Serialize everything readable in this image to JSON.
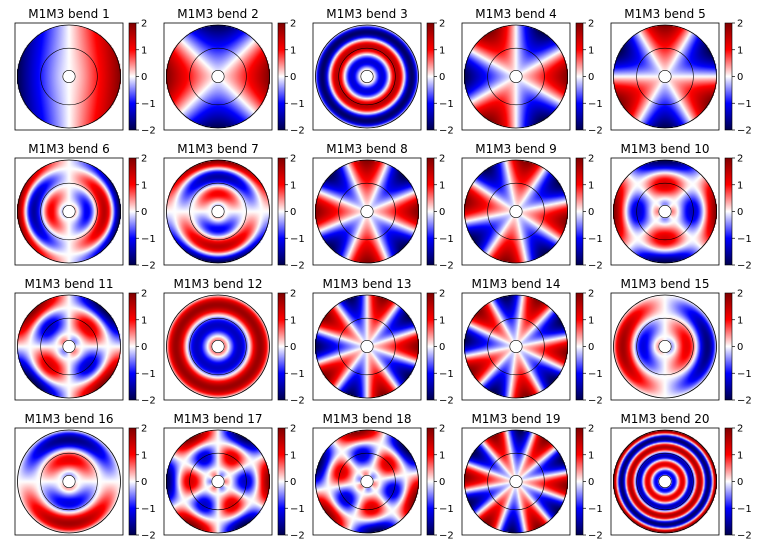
{
  "figure": {
    "rows": 4,
    "cols": 5
  },
  "chart_data": {
    "type": "heatmap",
    "colormap": "seismic",
    "colormap_colors": [
      "#00004c",
      "#0000ff",
      "#ffffff",
      "#ff0000",
      "#7f0000"
    ],
    "colorbar_range": [
      -2,
      2
    ],
    "colorbar_ticks": [
      "2",
      "1",
      "0",
      "−1",
      "−2"
    ],
    "panels": [
      {
        "title": "M1M3 bend 1",
        "kind": "ang",
        "n": 1,
        "r": 0,
        "phase": 0
      },
      {
        "title": "M1M3 bend 2",
        "kind": "ang",
        "n": 2,
        "r": 0,
        "phase": 0
      },
      {
        "title": "M1M3 bend 3",
        "kind": "rad",
        "n": 0,
        "r": 3.5,
        "phase": 0
      },
      {
        "title": "M1M3 bend 4",
        "kind": "ang",
        "n": 3,
        "r": 0,
        "phase": 0
      },
      {
        "title": "M1M3 bend 5",
        "kind": "ang",
        "n": 3,
        "r": 0,
        "phase": 1.57
      },
      {
        "title": "M1M3 bend 6",
        "kind": "mix",
        "n": 1,
        "r": 3,
        "phase": 0
      },
      {
        "title": "M1M3 bend 7",
        "kind": "mix",
        "n": 1,
        "r": 3,
        "phase": 1.57
      },
      {
        "title": "M1M3 bend 8",
        "kind": "ang",
        "n": 4,
        "r": 0,
        "phase": 0
      },
      {
        "title": "M1M3 bend 9",
        "kind": "ang",
        "n": 4,
        "r": 0,
        "phase": 0.78
      },
      {
        "title": "M1M3 bend 10",
        "kind": "mix",
        "n": 2,
        "r": 2,
        "phase": 0
      },
      {
        "title": "M1M3 bend 11",
        "kind": "mix",
        "n": 2,
        "r": 2,
        "phase": 1.57
      },
      {
        "title": "M1M3 bend 12",
        "kind": "rad",
        "n": 0,
        "r": 2.5,
        "phase": 0
      },
      {
        "title": "M1M3 bend 13",
        "kind": "ang",
        "n": 5,
        "r": 0,
        "phase": 0
      },
      {
        "title": "M1M3 bend 14",
        "kind": "ang",
        "n": 5,
        "r": 0,
        "phase": 0.63
      },
      {
        "title": "M1M3 bend 15",
        "kind": "mix",
        "n": 1,
        "r": 2.5,
        "phase": 3.14
      },
      {
        "title": "M1M3 bend 16",
        "kind": "mix",
        "n": 1,
        "r": 2.5,
        "phase": 1.57
      },
      {
        "title": "M1M3 bend 17",
        "kind": "mix",
        "n": 3,
        "r": 2,
        "phase": 0
      },
      {
        "title": "M1M3 bend 18",
        "kind": "mix",
        "n": 3,
        "r": 2,
        "phase": 1.05
      },
      {
        "title": "M1M3 bend 19",
        "kind": "ang",
        "n": 6,
        "r": 0,
        "phase": 0.5
      },
      {
        "title": "M1M3 bend 20",
        "kind": "rad",
        "n": 0,
        "r": 6,
        "phase": 0
      }
    ]
  }
}
